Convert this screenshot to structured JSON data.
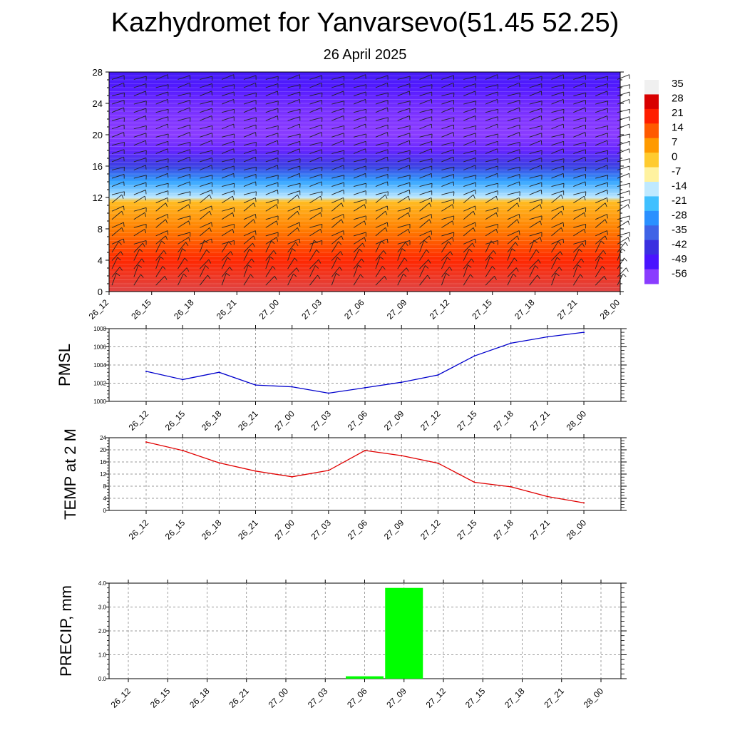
{
  "title": "Kazhydromet for Yanvarsevo(51.45 52.25)",
  "subtitle": "26 April 2025",
  "time_labels": [
    "26_12",
    "26_15",
    "26_18",
    "26_21",
    "27_00",
    "27_03",
    "27_06",
    "27_09",
    "27_12",
    "27_15",
    "27_18",
    "27_21",
    "28_00"
  ],
  "chart_data": [
    {
      "type": "heatmap",
      "title": "",
      "xlabel": "",
      "ylabel": "",
      "x": [
        "26_12",
        "26_15",
        "26_18",
        "26_21",
        "27_00",
        "27_03",
        "27_06",
        "27_09",
        "27_12",
        "27_15",
        "27_18",
        "27_21",
        "28_00"
      ],
      "y_ticks": [
        0,
        4,
        8,
        12,
        16,
        20,
        24,
        28
      ],
      "ylim": [
        0,
        28
      ],
      "colorbar_labels": [
        "35",
        "28",
        "21",
        "14",
        "7",
        "0",
        "-7",
        "-14",
        "-21",
        "-28",
        "-35",
        "-42",
        "-49",
        "-56"
      ],
      "colorbar_colors": [
        "#f0f0f0",
        "#d80000",
        "#ff1e00",
        "#ff5a00",
        "#ff9a00",
        "#ffcb2f",
        "#fff2a0",
        "#bfe9ff",
        "#40c0ff",
        "#2a90ff",
        "#3f63e6",
        "#3a30e0",
        "#4a14ff",
        "#8a3cff"
      ],
      "temperature_profile": [
        {
          "level": 0,
          "value": 30
        },
        {
          "level": 4,
          "value": 20
        },
        {
          "level": 8,
          "value": 10
        },
        {
          "level": 11.5,
          "value": 2
        },
        {
          "level": 12,
          "value": -14
        },
        {
          "level": 14,
          "value": -25
        },
        {
          "level": 16,
          "value": -40
        },
        {
          "level": 18,
          "value": -52
        },
        {
          "level": 20,
          "value": -56
        },
        {
          "level": 22,
          "value": -55
        },
        {
          "level": 24,
          "value": -53
        },
        {
          "level": 26,
          "value": -50
        },
        {
          "level": 28,
          "value": -47
        }
      ],
      "overlay": "wind barbs"
    },
    {
      "type": "line",
      "ylabel": "PMSL",
      "x": [
        "26_12",
        "26_15",
        "26_18",
        "26_21",
        "27_00",
        "27_03",
        "27_06",
        "27_09",
        "27_12",
        "27_15",
        "27_18",
        "27_21",
        "28_00"
      ],
      "series": [
        {
          "values": [
            1003.3,
            1002.4,
            1003.2,
            1001.8,
            1001.6,
            1000.9,
            1001.5,
            1002.1,
            1002.9,
            1005.0,
            1006.4,
            1007.1,
            1007.6
          ]
        }
      ],
      "ylim": [
        1000,
        1008
      ],
      "y_ticks": [
        "1000",
        "1002",
        "1004",
        "1006",
        "1008"
      ],
      "grid": true,
      "color": "#0000cc"
    },
    {
      "type": "line",
      "ylabel": "TEMP at 2 M",
      "x": [
        "26_12",
        "26_15",
        "26_18",
        "26_21",
        "27_00",
        "27_03",
        "27_06",
        "27_09",
        "27_12",
        "27_15",
        "27_18",
        "27_21",
        "28_00"
      ],
      "series": [
        {
          "values": [
            22.6,
            19.8,
            15.7,
            13.0,
            11.1,
            13.2,
            19.8,
            18.1,
            15.6,
            9.3,
            7.8,
            4.6,
            2.5
          ]
        }
      ],
      "ylim": [
        0,
        24
      ],
      "y_ticks": [
        "0",
        "4",
        "8",
        "12",
        "16",
        "20",
        "24"
      ],
      "grid": true,
      "color": "#e00000"
    },
    {
      "type": "bar",
      "ylabel": "PRECIP, mm",
      "categories": [
        "26_12",
        "26_15",
        "26_18",
        "26_21",
        "27_00",
        "27_03",
        "27_06",
        "27_09",
        "27_12",
        "27_15",
        "27_18",
        "27_21",
        "28_00"
      ],
      "values": [
        0,
        0,
        0,
        0,
        0,
        0,
        0.1,
        3.8,
        0,
        0,
        0,
        0,
        0
      ],
      "ylim": [
        0,
        4.0
      ],
      "y_ticks": [
        "0.0",
        "1.0",
        "2.0",
        "3.0",
        "4.0"
      ],
      "grid": true,
      "color": "#00ff00"
    }
  ]
}
